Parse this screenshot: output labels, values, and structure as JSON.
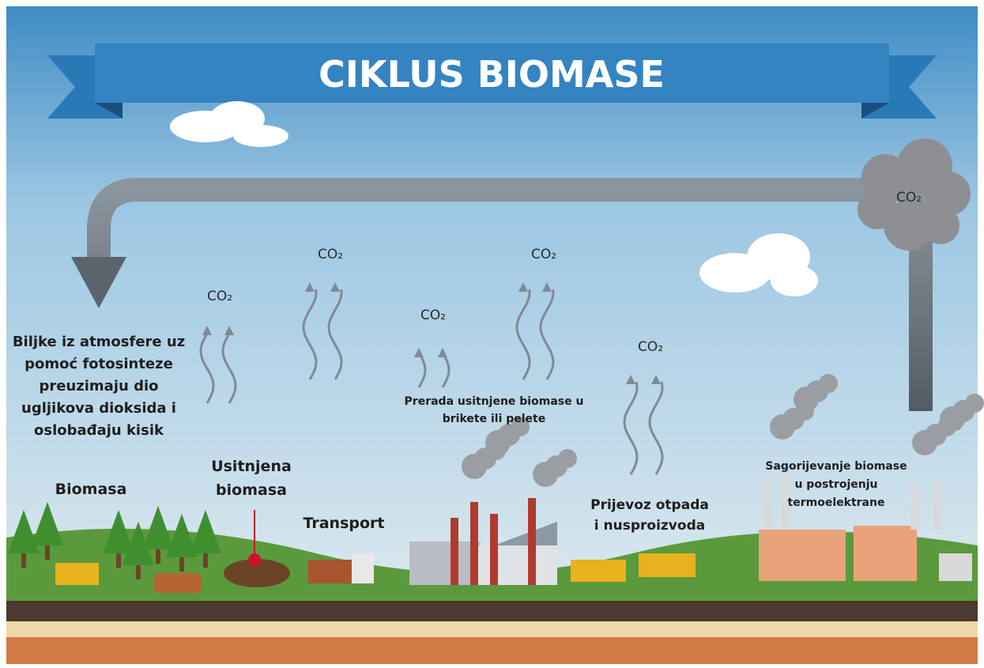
{
  "title": "CIKLUS BIOMASE",
  "stages": [
    {
      "lines": [
        "Biljke iz atmosfere uz",
        "pomoć fotosinteze",
        "preuzimaju dio",
        "ugljikova dioksida i",
        "oslobađaju kisik"
      ]
    },
    {
      "lines": [
        "Biomasa"
      ]
    },
    {
      "lines": [
        "Usitnjena",
        "biomasa"
      ]
    },
    {
      "lines": [
        "Transport"
      ]
    },
    {
      "lines": [
        "Prerada usitnjene biomase u",
        "brikete ili pelete"
      ]
    },
    {
      "lines": [
        "Prijevoz otpada",
        "i nusproizvoda"
      ]
    },
    {
      "lines": [
        "Sagorijevanje biomase",
        "u postrojenju",
        "termoelektrane"
      ]
    }
  ],
  "co2_labels": [
    "CO₂",
    "CO₂",
    "CO₂",
    "CO₂",
    "CO₂",
    "CO₂"
  ]
}
